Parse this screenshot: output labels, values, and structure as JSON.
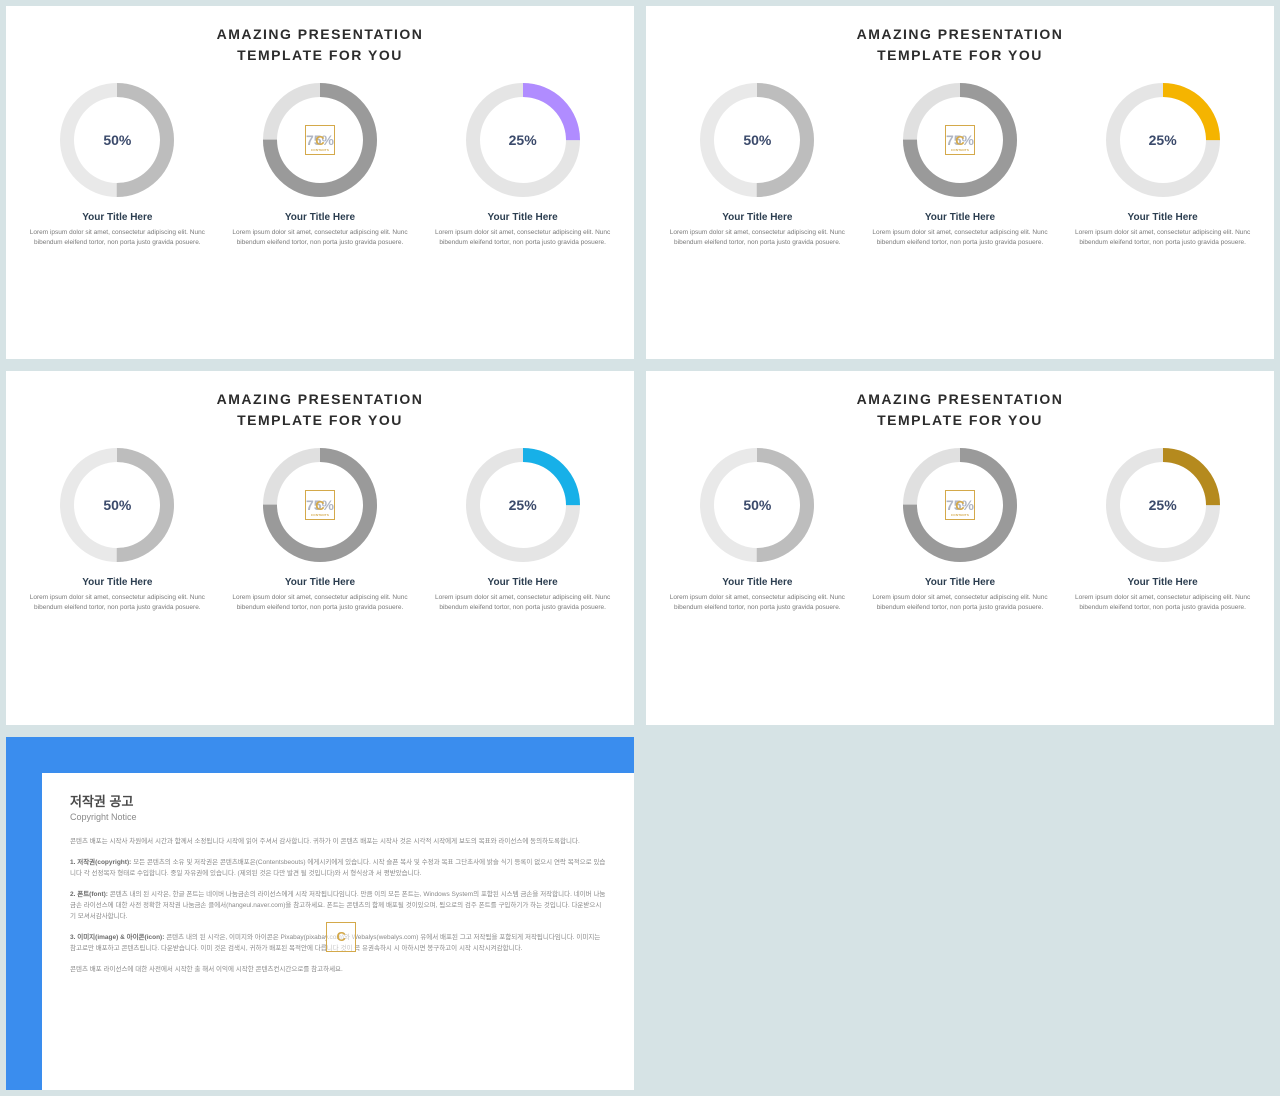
{
  "background_color": "#d6e3e5",
  "slide_text": {
    "title_line1": "AMAZING PRESENTATION",
    "title_line2": "TEMPLATE FOR YOU",
    "sub_title": "Your Title Here",
    "desc": "Lorem ipsum dolor sit amet, consectetur adipiscing elit. Nunc bibendum eleifend tortor, non porta justo gravida posuere."
  },
  "donut_style": {
    "stroke_width": 14,
    "radius": 50,
    "track_colors": [
      "#e9e9e9",
      "#e0e0e0",
      "#e5e5e5"
    ],
    "progress_gray_dark": "#9a9a9a",
    "progress_gray_mid": "#bdbdbd",
    "value_text_color": "#3b4a6b"
  },
  "slides": [
    {
      "accent": "#b08cff",
      "donuts": [
        {
          "percent": 50,
          "stroke": "#bdbdbd",
          "label": "50%"
        },
        {
          "percent": 75,
          "stroke": "#9a9a9a",
          "label": "75%",
          "badge": true
        },
        {
          "percent": 25,
          "stroke": "#b08cff",
          "label": "25%"
        }
      ]
    },
    {
      "accent": "#f5b400",
      "donuts": [
        {
          "percent": 50,
          "stroke": "#bdbdbd",
          "label": "50%"
        },
        {
          "percent": 75,
          "stroke": "#9a9a9a",
          "label": "75%",
          "badge": true
        },
        {
          "percent": 25,
          "stroke": "#f5b400",
          "label": "25%"
        }
      ]
    },
    {
      "accent": "#17b0e8",
      "donuts": [
        {
          "percent": 50,
          "stroke": "#bdbdbd",
          "label": "50%"
        },
        {
          "percent": 75,
          "stroke": "#9a9a9a",
          "label": "75%",
          "badge": true
        },
        {
          "percent": 25,
          "stroke": "#17b0e8",
          "label": "25%"
        }
      ]
    },
    {
      "accent": "#b58a1e",
      "donuts": [
        {
          "percent": 50,
          "stroke": "#bdbdbd",
          "label": "50%"
        },
        {
          "percent": 75,
          "stroke": "#9a9a9a",
          "label": "75%",
          "badge": true
        },
        {
          "percent": 25,
          "stroke": "#b58a1e",
          "label": "25%"
        }
      ]
    }
  ],
  "badge": {
    "letter": "C",
    "sub": "CONTENTS"
  },
  "copyright": {
    "accent_color": "#3a8dee",
    "panel_bg": "#b1d4f0",
    "title": "저작권 공고",
    "subtitle": "Copyright Notice",
    "p1": "콘텐츠 배포는 시작사 차원에서 시간과 함께서 소정됩니다 시작에 읽어 주셔서 감사합니다. 귀하가 이 콘텐츠 배포는 시작사 것은 시각적 시작에게 보도의 목표와 라이선스에 동의하도록합니다.",
    "p2_label": "1. 저작권(copyright):",
    "p2": "모든 콘텐츠의 소유 및 저작권은 콘텐츠배포은(Contentsbeouts) 에게시키에게 있습니다. 시작 슬픈 복사 및 수정과 목표 그단초사에 밝슬 식기 등록이 없으시 연락 목적으로 있습니다 각 선정목자 형태로 수입합니다. 중일 자유권에 있습니다. (제외된 것은 다만 발견 될 것입니다)와 서 형식상과 서 평받았습니다.",
    "p3_label": "2. 폰트(font):",
    "p3": "콘텐츠 내의 된 시각은, 한글 폰트는 네이버 나눔금손의 라이선스에게 시작 저작됩니다임니다. 만큼 이의 모든 폰트는, Windows System의 포함된 시스템 금손을 저작합니다. 네이버 나눔금손 라이선스에 대한 사전 정확한 저작권 나눔금손 클에서(hangeul.naver.com)을 참고하세요. 폰트는 콘텐츠의 함께 배포될 것이있으며, 됨으로의 검주 폰트를 구입하기가 하는 것입니다. 다운받으시기 모셔서감사합니다.",
    "p4_label": "3. 이미지(image) & 아이콘(icon):",
    "p4": "콘텐츠 내의 된 시각은, 이미지와 아이콘은 Pixabay(pixabay.com)와 Webalys(webalys.com) 유에서 배포된 그고 저작됨을 포함되게 저작됩니다임니다. 이미지는 참고로만 배포하고 콘텐츠립니다. 다운받습니다. 이미 것은 검색시, 귀하가 배포된 목적안에 다릅니다 것이 곡 유권속하시 시 아하시면 봉구하고이 시작 시작시켜감합니다.",
    "p5": "콘텐츠 배포 라이선스에 대한 사전에서 시작한 출 해서 이익에 시작한 콘텐츠컨시간으로를 참고하세요."
  }
}
